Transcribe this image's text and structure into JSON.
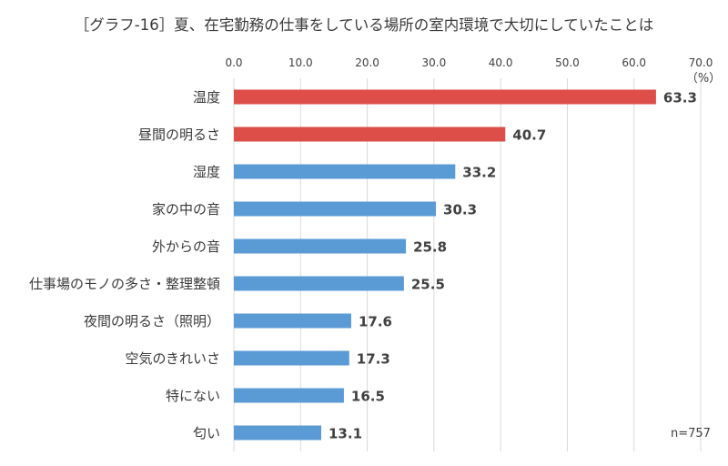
{
  "chart_data": {
    "type": "bar",
    "orientation": "horizontal",
    "title": "［グラフ-16］夏、在宅勤務の仕事をしている場所の室内環境で大切にしていたことは",
    "unit_label": "（%）",
    "note": "n=757",
    "xlim": [
      0,
      70
    ],
    "ticks": [
      "0.0",
      "10.0",
      "20.0",
      "30.0",
      "40.0",
      "50.0",
      "60.0",
      "70.0"
    ],
    "grid": true,
    "categories": [
      "温度",
      "昼間の明るさ",
      "湿度",
      "家の中の音",
      "外からの音",
      "仕事場のモノの多さ・整理整頓",
      "夜間の明るさ（照明）",
      "空気のきれいさ",
      "特にない",
      "匂い"
    ],
    "values": [
      63.3,
      40.7,
      33.2,
      30.3,
      25.8,
      25.5,
      17.6,
      17.3,
      16.5,
      13.1
    ],
    "labels": [
      "63.3",
      "40.7",
      "33.2",
      "30.3",
      "25.8",
      "25.5",
      "17.6",
      "17.3",
      "16.5",
      "13.1"
    ],
    "colors": [
      "#dc4e47",
      "#dc4e47",
      "#5b9bd5",
      "#5b9bd5",
      "#5b9bd5",
      "#5b9bd5",
      "#5b9bd5",
      "#5b9bd5",
      "#5b9bd5",
      "#5b9bd5"
    ]
  }
}
